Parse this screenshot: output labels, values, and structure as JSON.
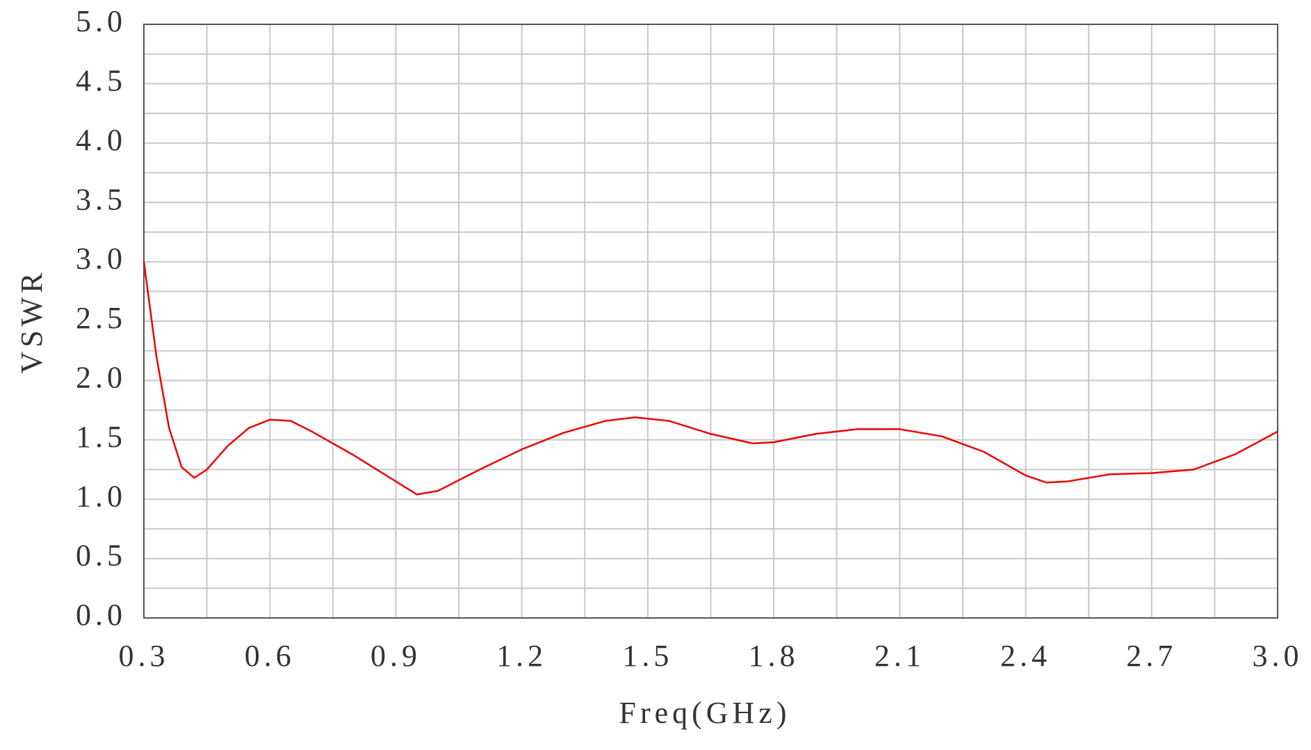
{
  "chart_data": {
    "type": "line",
    "x_label": "Freq(GHz)",
    "y_label": "VSWR",
    "x": [
      0.3,
      0.33,
      0.36,
      0.39,
      0.42,
      0.45,
      0.5,
      0.55,
      0.6,
      0.65,
      0.7,
      0.8,
      0.9,
      0.95,
      1.0,
      1.1,
      1.2,
      1.3,
      1.4,
      1.47,
      1.55,
      1.65,
      1.75,
      1.8,
      1.9,
      2.0,
      2.1,
      2.2,
      2.3,
      2.4,
      2.45,
      2.5,
      2.6,
      2.7,
      2.8,
      2.9,
      3.0
    ],
    "series": [
      {
        "color": "#ee0000",
        "values": [
          3.0,
          2.2,
          1.6,
          1.27,
          1.18,
          1.25,
          1.45,
          1.6,
          1.67,
          1.66,
          1.57,
          1.37,
          1.15,
          1.04,
          1.07,
          1.25,
          1.42,
          1.56,
          1.66,
          1.69,
          1.66,
          1.55,
          1.47,
          1.48,
          1.55,
          1.59,
          1.59,
          1.53,
          1.4,
          1.2,
          1.14,
          1.15,
          1.21,
          1.22,
          1.25,
          1.38,
          1.57
        ]
      }
    ],
    "xlim": [
      0.3,
      3.0
    ],
    "xticks": [
      0.3,
      0.6,
      0.9,
      1.2,
      1.5,
      1.8,
      2.1,
      2.4,
      2.7,
      {
        "value": 3,
        "label": "3.0"
      }
    ],
    "ylim": [
      0,
      5
    ],
    "yticks": [
      {
        "value": 0,
        "label": "0.0"
      },
      0.5,
      {
        "value": 1,
        "label": "1.0"
      },
      1.5,
      {
        "value": 2,
        "label": "2.0"
      },
      2.5,
      {
        "value": 3,
        "label": "3.0"
      },
      3.5,
      {
        "value": 4,
        "label": "4.0"
      },
      4.5,
      {
        "value": 5,
        "label": "5.0"
      }
    ],
    "grid": true
  }
}
